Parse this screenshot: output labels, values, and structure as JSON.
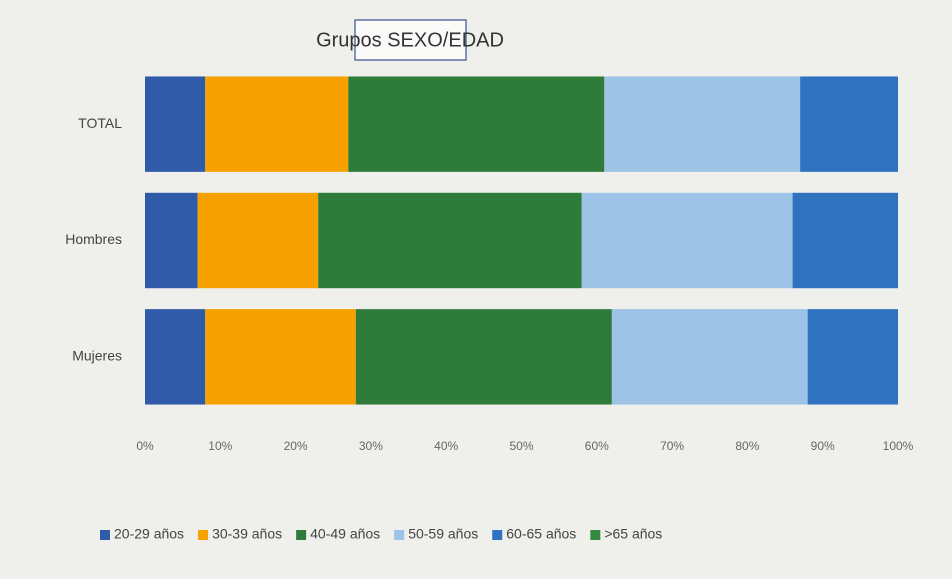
{
  "chart_data": {
    "type": "bar",
    "orientation": "horizontal",
    "stacked": true,
    "title": "Grupos SEXO/EDAD",
    "categories": [
      "TOTAL",
      "Hombres",
      "Mujeres"
    ],
    "series": [
      {
        "name": "20-29 años",
        "color": "#2f5ba8",
        "values": [
          8,
          7,
          8
        ]
      },
      {
        "name": "30-39 años",
        "color": "#f6a100",
        "values": [
          19,
          16,
          20
        ]
      },
      {
        "name": "40-49 años",
        "color": "#2e7b3a",
        "values": [
          34,
          35,
          34
        ]
      },
      {
        "name": "50-59 años",
        "color": "#9dc4e7",
        "values": [
          26,
          28,
          26
        ]
      },
      {
        "name": "60-65 años",
        "color": "#2f73c0",
        "values": [
          13,
          14,
          12
        ]
      },
      {
        "name": ">65 años",
        "color": "#33893f",
        "values": [
          0,
          0,
          0
        ]
      }
    ],
    "xlim": [
      0,
      100
    ],
    "xticks": [
      {
        "value": 0,
        "label": "0%"
      },
      {
        "value": 10,
        "label": "10%"
      },
      {
        "value": 20,
        "label": "20%"
      },
      {
        "value": 30,
        "label": "30%"
      },
      {
        "value": 40,
        "label": "40%"
      },
      {
        "value": 50,
        "label": "50%"
      },
      {
        "value": 60,
        "label": "60%"
      },
      {
        "value": 70,
        "label": "70%"
      },
      {
        "value": 80,
        "label": "80%"
      },
      {
        "value": 90,
        "label": "90%"
      },
      {
        "value": 100,
        "label": "100%"
      }
    ],
    "legend": "bottom"
  }
}
